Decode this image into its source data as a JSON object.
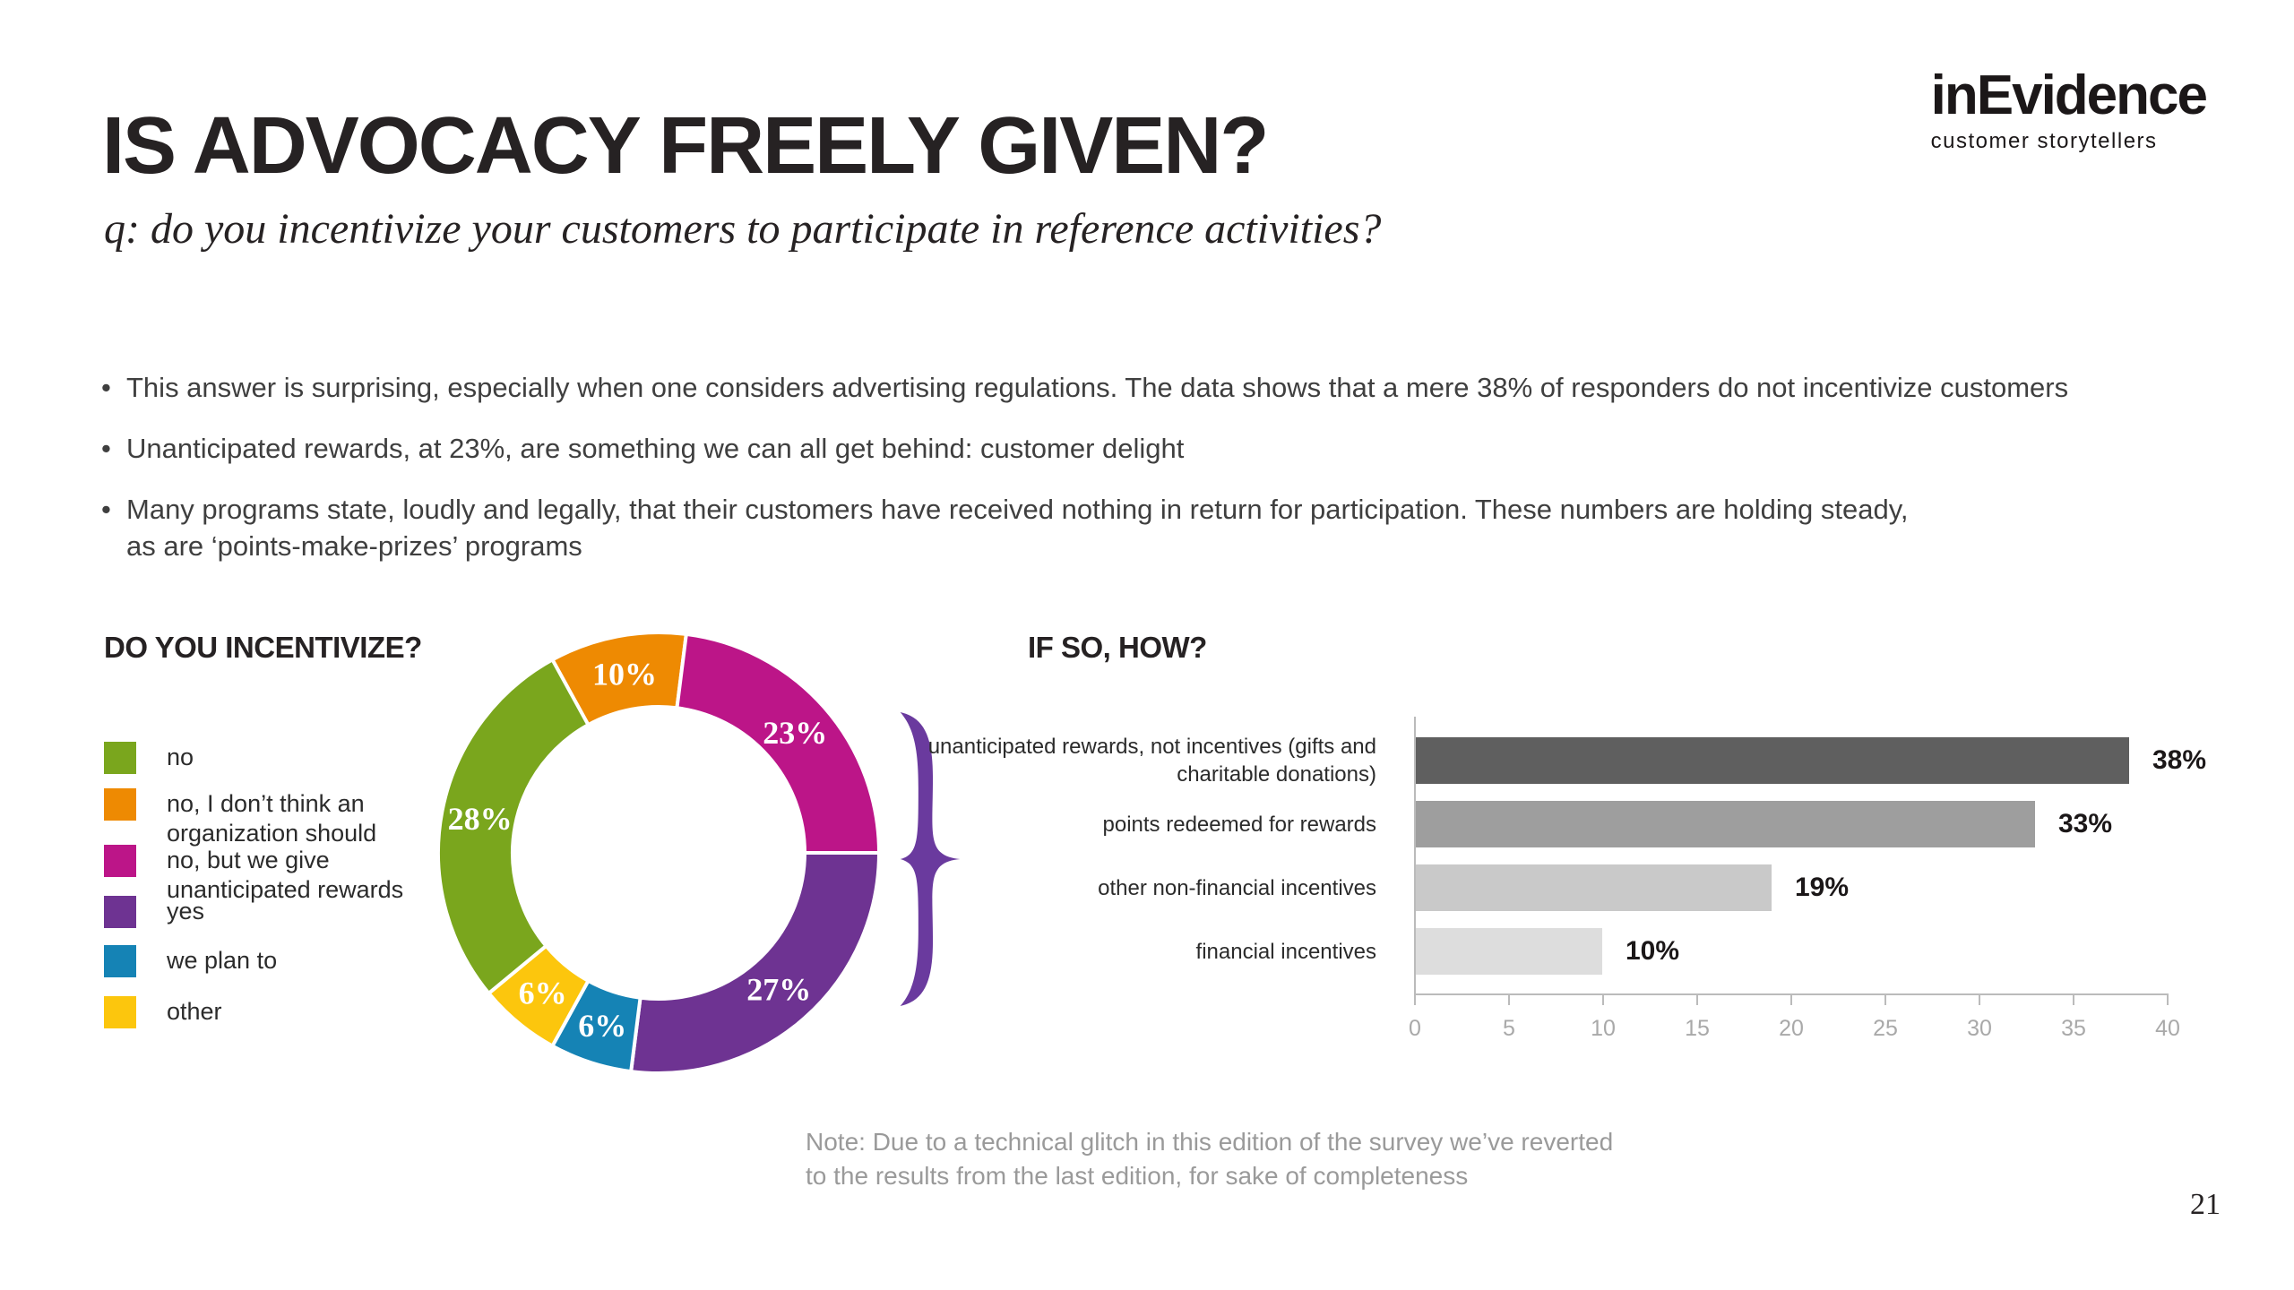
{
  "page": {
    "title": "IS ADVOCACY FREELY GIVEN?",
    "subtitle": "q: do you incentivize your customers to participate in reference activities?",
    "page_number": "21"
  },
  "logo": {
    "brand": "inEvidence",
    "tagline": "customer storytellers"
  },
  "bullets": [
    "This answer is surprising, especially when one considers advertising regulations. The data shows that a mere 38% of responders do not incentivize customers",
    "Unanticipated rewards, at 23%, are something we can all get behind: customer delight",
    "Many programs state, loudly and legally, that their customers have received nothing in return for participation. These numbers are holding steady,\nas are ‘points-make-prizes’ programs"
  ],
  "note": "Note: Due to a technical glitch in this edition of the survey we’ve reverted\nto the results from the last edition, for sake of completeness",
  "chart_data": [
    {
      "type": "donut",
      "title": "DO YOU INCENTIVIZE?",
      "legend_position": "left",
      "slices": [
        {
          "label": "no",
          "value": 28,
          "pct_label": "28%",
          "color": "#7aa61d"
        },
        {
          "label": "no, I don’t think an\norganization should",
          "value": 10,
          "pct_label": "10%",
          "color": "#ee8a02"
        },
        {
          "label": "no, but we give\nunanticipated rewards",
          "value": 23,
          "pct_label": "23%",
          "color": "#bc1588"
        },
        {
          "label": "yes",
          "value": 27,
          "pct_label": "27%",
          "color": "#6e3392"
        },
        {
          "label": "we plan to",
          "value": 6,
          "pct_label": "6%",
          "color": "#1583b5"
        },
        {
          "label": "other",
          "value": 6,
          "pct_label": "6%",
          "color": "#fcc60d"
        }
      ],
      "draw_order": [
        1,
        2,
        3,
        4,
        5,
        0
      ],
      "start_angle_deg": -28.8,
      "brace_color": "#6a3a9e",
      "brace_groups": [
        "no, but we give unanticipated rewards",
        "yes"
      ]
    },
    {
      "type": "bar",
      "orientation": "horizontal",
      "title": "IF SO, HOW?",
      "categories": [
        "unanticipated rewards, not incentives (gifts and\ncharitable donations)",
        "points redeemed for rewards",
        "other non-financial incentives",
        "financial incentives"
      ],
      "values": [
        38,
        33,
        19,
        10
      ],
      "value_labels": [
        "38%",
        "33%",
        "19%",
        "10%"
      ],
      "colors": [
        "#5f5f5f",
        "#9e9e9e",
        "#c9c9c9",
        "#dddddd"
      ],
      "xlim": [
        0,
        40
      ],
      "ticks": [
        "0",
        "5",
        "10",
        "15",
        "20",
        "25",
        "30",
        "35",
        "40"
      ],
      "grid": false,
      "legend": "none"
    }
  ]
}
